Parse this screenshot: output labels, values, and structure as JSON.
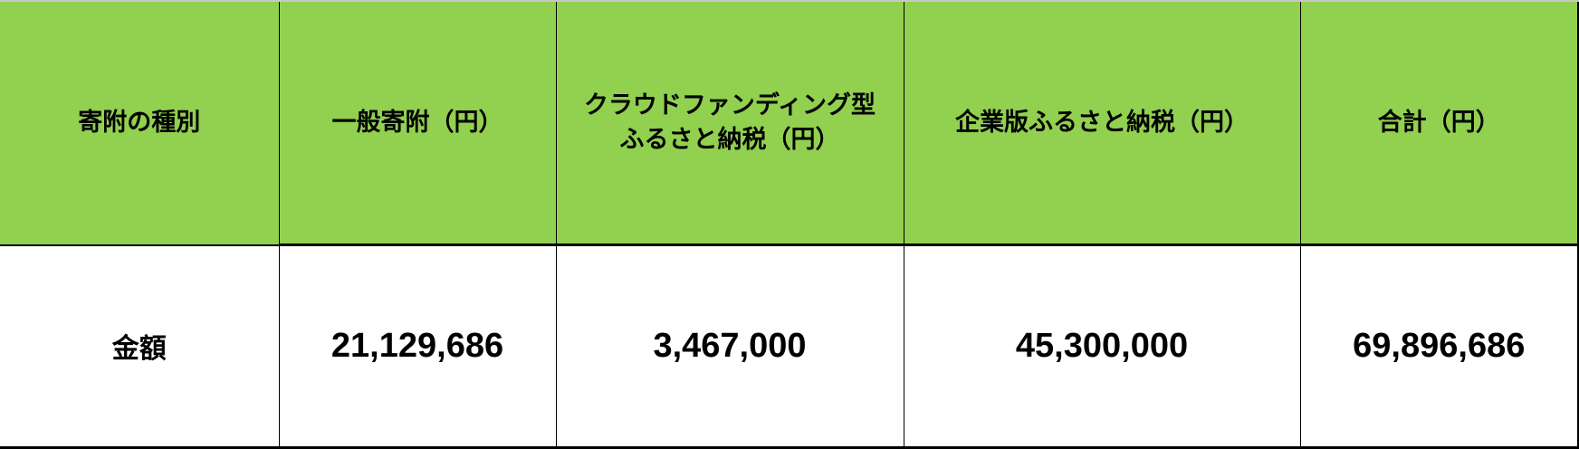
{
  "table": {
    "header": [
      "寄附の種別",
      "一般寄附（円）",
      "クラウドファンディング型\nふるさと納税（円）",
      "企業版ふるさと納税（円）",
      "合計（円）"
    ],
    "header_line1_col2": "クラウドファンディング型",
    "header_line2_col2": "ふるさと納税（円）",
    "row": [
      "金額",
      "21,129,686",
      "3,467,000",
      "45,300,000",
      "69,896,686"
    ]
  },
  "colors": {
    "header_bg": "#92D050",
    "body_bg": "#FFFFFF",
    "border": "#000000"
  }
}
